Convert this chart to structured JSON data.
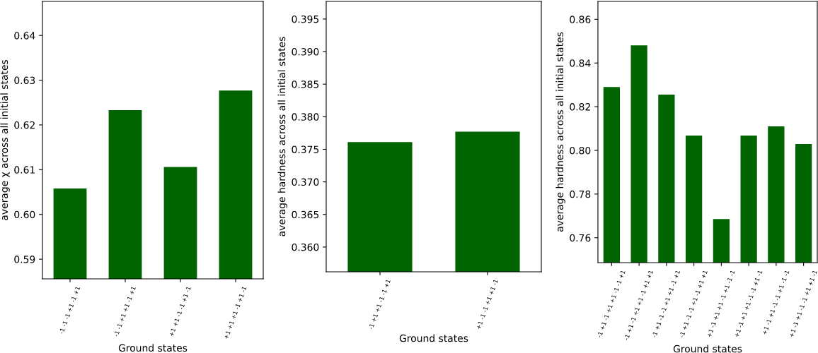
{
  "chart_data": [
    {
      "type": "bar",
      "xlabel": "Ground states",
      "ylabel": "average χ across all initial states",
      "color": "#006400",
      "grid": false,
      "categories": [
        "-1 -1 -1 +1 -1 +1",
        "-1 -1 +1 +1 -1 +1",
        "+1 +1 -1 -1 +1 -1",
        "+1 +1 +1 -1 +1 -1"
      ],
      "values": [
        0.6058,
        0.6233,
        0.6106,
        0.6277
      ],
      "ylim": [
        0.5856,
        0.6476
      ],
      "yticks": [
        0.59,
        {
          "value": 0.6,
          "label": "0.60"
        },
        0.61,
        0.62,
        0.63,
        0.64
      ]
    },
    {
      "type": "bar",
      "xlabel": "Ground states",
      "ylabel": "average hardness across all initial states",
      "color": "#006400",
      "grid": false,
      "categories": [
        "-1 +1 +1 -1 -1 +1",
        "+1 -1 -1 +1 +1 -1"
      ],
      "values": [
        0.3761,
        0.3777
      ],
      "ylim": [
        0.3562,
        0.3977
      ],
      "yticks": [
        {
          "value": 0.36,
          "label": "0.360"
        },
        0.365,
        {
          "value": 0.37,
          "label": "0.370"
        },
        0.375,
        {
          "value": 0.38,
          "label": "0.380"
        },
        0.385,
        {
          "value": 0.39,
          "label": "0.390"
        },
        0.395
      ]
    },
    {
      "type": "bar",
      "xlabel": "Ground states",
      "ylabel": "average hardness across all initial states",
      "color": "#006400",
      "grid": false,
      "categories": [
        "-1 +1 -1 +1 +1 -1 -1 +1",
        "-1 +1 -1 +1 +1 -1 +1 +1",
        "-1 +1 -1 -1 +1 +1 -1 +1",
        "-1 +1 -1 -1 +1 -1 +1 +1",
        "+1 -1 +1 +1 -1 +1 -1 -1",
        "+1 -1 +1 +1 -1 -1 +1 -1",
        "+1 -1 +1 -1 -1 +1 -1 -1",
        "+1 -1 +1 -1 -1 +1 +1 -1"
      ],
      "values": [
        0.829,
        0.8481,
        0.8255,
        0.8068,
        0.7686,
        0.8068,
        0.811,
        0.8029
      ],
      "ylim": [
        0.7486,
        0.8682
      ],
      "yticks": [
        0.76,
        0.78,
        {
          "value": 0.8,
          "label": "0.80"
        },
        0.82,
        0.84,
        0.86
      ]
    }
  ]
}
